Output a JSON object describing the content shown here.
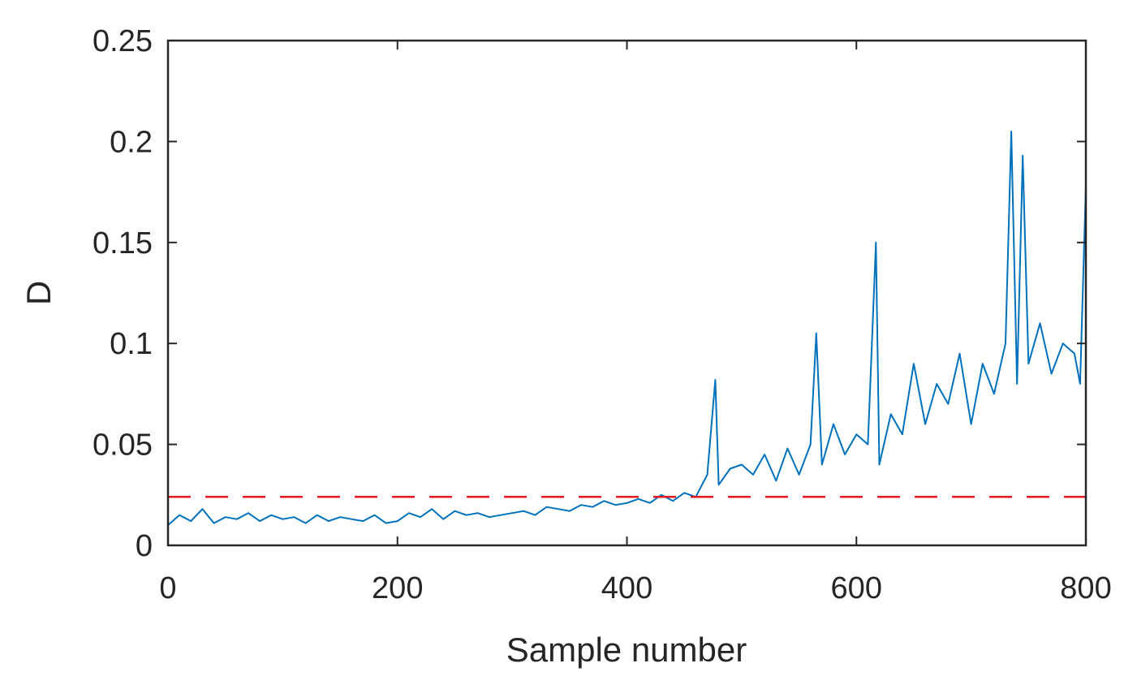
{
  "chart_data": {
    "type": "line",
    "title": "",
    "xlabel": "Sample number",
    "ylabel": "D",
    "xlim": [
      0,
      800
    ],
    "ylim": [
      0,
      0.25
    ],
    "x_ticks": [
      0,
      200,
      400,
      600,
      800
    ],
    "x_tick_labels": [
      "0",
      "200",
      "400",
      "600",
      "800"
    ],
    "y_ticks": [
      0,
      0.05,
      0.1,
      0.15,
      0.2,
      0.25
    ],
    "y_tick_labels": [
      "0",
      "0.05",
      "0.1",
      "0.15",
      "0.2",
      "0.25"
    ],
    "grid": false,
    "legend": "none",
    "colors": {
      "series": "#0072BD",
      "threshold": "#E41A1C",
      "axes": "#262626"
    },
    "series": [
      {
        "style": "solid",
        "x": [
          0,
          10,
          20,
          30,
          40,
          50,
          60,
          70,
          80,
          90,
          100,
          110,
          120,
          130,
          140,
          150,
          160,
          170,
          180,
          190,
          200,
          210,
          220,
          230,
          240,
          250,
          260,
          270,
          280,
          290,
          300,
          310,
          320,
          330,
          340,
          350,
          360,
          370,
          380,
          390,
          400,
          410,
          420,
          430,
          440,
          450,
          460,
          470,
          477,
          480,
          490,
          500,
          510,
          520,
          530,
          540,
          550,
          560,
          565,
          570,
          580,
          590,
          600,
          610,
          617,
          620,
          630,
          640,
          650,
          660,
          670,
          680,
          690,
          700,
          710,
          720,
          730,
          735,
          740,
          745,
          750,
          760,
          770,
          780,
          790,
          795,
          800
        ],
        "y": [
          0.01,
          0.015,
          0.012,
          0.018,
          0.011,
          0.014,
          0.013,
          0.016,
          0.012,
          0.015,
          0.013,
          0.014,
          0.011,
          0.015,
          0.012,
          0.014,
          0.013,
          0.012,
          0.015,
          0.011,
          0.012,
          0.016,
          0.014,
          0.018,
          0.013,
          0.017,
          0.015,
          0.016,
          0.014,
          0.015,
          0.016,
          0.017,
          0.015,
          0.019,
          0.018,
          0.017,
          0.02,
          0.019,
          0.022,
          0.02,
          0.021,
          0.023,
          0.021,
          0.025,
          0.022,
          0.026,
          0.024,
          0.035,
          0.082,
          0.03,
          0.038,
          0.04,
          0.035,
          0.045,
          0.032,
          0.048,
          0.035,
          0.05,
          0.105,
          0.04,
          0.06,
          0.045,
          0.055,
          0.05,
          0.15,
          0.04,
          0.065,
          0.055,
          0.09,
          0.06,
          0.08,
          0.07,
          0.095,
          0.06,
          0.09,
          0.075,
          0.1,
          0.205,
          0.08,
          0.193,
          0.09,
          0.11,
          0.085,
          0.1,
          0.095,
          0.08,
          0.178
        ]
      },
      {
        "style": "dashed",
        "x": [
          0,
          800
        ],
        "y": [
          0.024,
          0.024
        ]
      }
    ]
  }
}
